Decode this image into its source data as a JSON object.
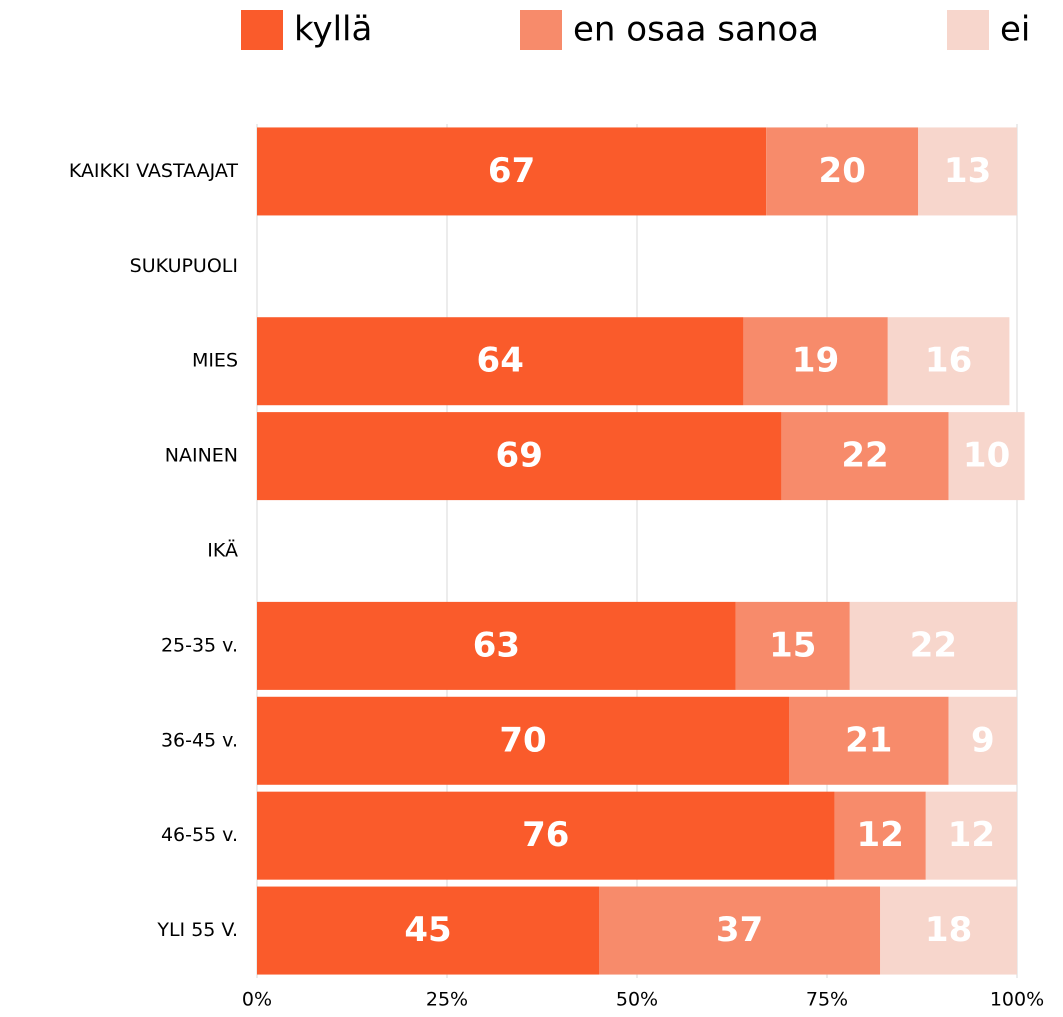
{
  "chart_data": {
    "type": "stacked-bar-horizontal",
    "categories": [
      "KAIKKI VASTAAJAT",
      "SUKUPUOLI",
      "MIES",
      "NAINEN",
      "IKÄ",
      "25-35 v.",
      "36-45 v.",
      "46-55 v.",
      "YLI 55 V."
    ],
    "series": [
      {
        "name": "kyllä",
        "color": "#fa5b2b",
        "values": [
          67,
          null,
          64,
          69,
          null,
          63,
          70,
          76,
          45
        ]
      },
      {
        "name": "en osaa sanoa",
        "color": "#f78b6b",
        "values": [
          20,
          null,
          19,
          22,
          null,
          15,
          21,
          12,
          37
        ]
      },
      {
        "name": "ei",
        "color": "#f7d6cc",
        "values": [
          13,
          null,
          16,
          10,
          null,
          22,
          9,
          12,
          18
        ]
      }
    ],
    "xlim": [
      0,
      100
    ],
    "xticks": [
      {
        "value": 0,
        "label": "0%"
      },
      {
        "value": 25,
        "label": "25%"
      },
      {
        "value": 50,
        "label": "50%"
      },
      {
        "value": 75,
        "label": "75%"
      },
      {
        "value": 100,
        "label": "100%"
      }
    ],
    "grid": true,
    "legend": "top"
  }
}
